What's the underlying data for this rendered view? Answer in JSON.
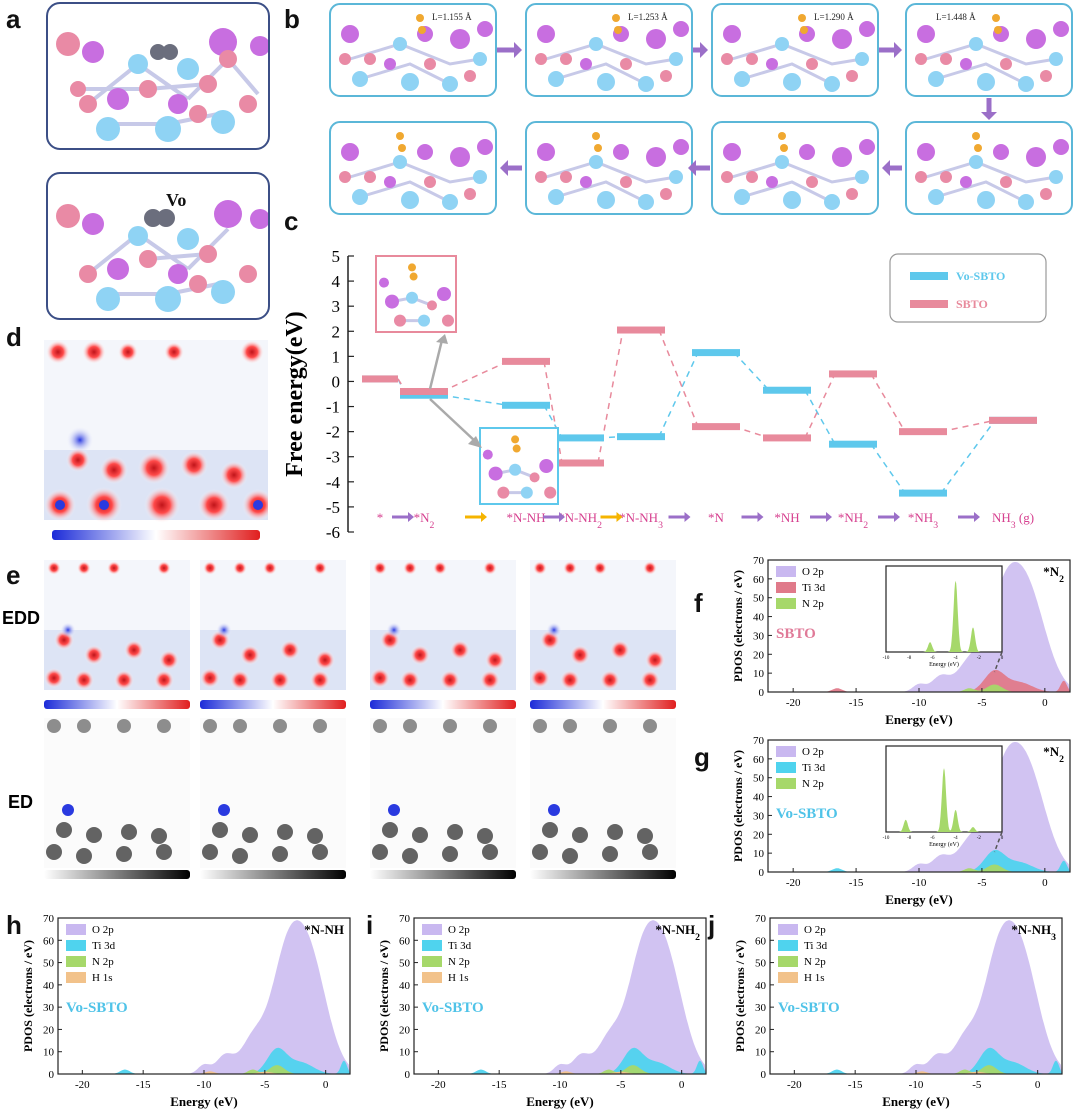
{
  "panels": {
    "a": "a",
    "b": "b",
    "c": "c",
    "d": "d",
    "e": "e",
    "f": "f",
    "g": "g",
    "h": "h",
    "i": "i",
    "j": "j"
  },
  "panel_a": {
    "vacancy_label": "Vo"
  },
  "panel_b": {
    "bond_lengths": [
      "L=1.155 Å",
      "L=1.253 Å",
      "L=1.290 Å",
      "L=1.448 Å"
    ]
  },
  "panel_e": {
    "row1_label": "EDD",
    "row2_label": "ED"
  },
  "colors": {
    "atom_pink": "#e98aa5",
    "atom_purple": "#c86ee0",
    "atom_blue": "#8fd3f4",
    "atom_orange": "#f0a830",
    "atom_gray": "#6b6e7d",
    "box_blue": "#5bb7d8",
    "arrow_purple": "#9b6fc8",
    "arrow_orange": "#f5b400",
    "vo_sbto": "#5ec8ec",
    "sbto": "#e88a9c"
  },
  "chart_data": [
    {
      "type": "step",
      "panel": "c",
      "ylabel": "Free energy(eV)",
      "ylim": [
        -6,
        5
      ],
      "yticks": [
        "5",
        "4",
        "3",
        "2",
        "1",
        "0",
        "-1",
        "-2",
        "-3",
        "-4",
        "-5",
        "-6"
      ],
      "categories": [
        "*",
        "*N₂",
        "*N-NH",
        "*N-NH₂",
        "*N-NH₃",
        "*N",
        "*NH",
        "*NH₂",
        "*NH₃",
        "NH₃ (g)"
      ],
      "arrow_colors": [
        "purple",
        "orange",
        "purple",
        "orange",
        "purple",
        "purple",
        "purple",
        "purple",
        "purple"
      ],
      "series": [
        {
          "name": "Vo-SBTO",
          "color": "#5ec8ec",
          "values": [
            0.1,
            -0.55,
            -0.95,
            -2.25,
            -2.2,
            1.15,
            -0.35,
            -2.5,
            -4.45,
            -1.55
          ]
        },
        {
          "name": "SBTO",
          "color": "#e88a9c",
          "values": [
            0.1,
            -0.4,
            0.8,
            -3.25,
            2.05,
            -1.8,
            -2.25,
            0.3,
            -2.0,
            -1.55
          ]
        }
      ]
    },
    {
      "type": "area",
      "panel": "f",
      "title": "*N₂",
      "label": "SBTO",
      "xlabel": "Energy (eV)",
      "ylabel": "PDOS (electrons / eV)",
      "xlim": [
        -22,
        2
      ],
      "ylim": [
        0,
        70
      ],
      "xticks": [
        "-20",
        "-15",
        "-10",
        "-5",
        "0"
      ],
      "yticks": [
        "0",
        "10",
        "20",
        "30",
        "40",
        "50",
        "60",
        "70"
      ],
      "series": [
        {
          "name": "O 2p",
          "color": "#c9b8f0"
        },
        {
          "name": "Ti 3d",
          "color": "#e07a8a"
        },
        {
          "name": "N 2p",
          "color": "#a6d86a"
        }
      ],
      "inset": {
        "xticks": [
          "-10",
          "-8",
          "-6",
          "-4",
          "-2",
          "0"
        ],
        "xlabel": "Energy (eV)",
        "peaks": [
          [
            -6.2,
            8
          ],
          [
            -4.0,
            58
          ],
          [
            -2.5,
            20
          ]
        ]
      }
    },
    {
      "type": "area",
      "panel": "g",
      "title": "*N₂",
      "label": "Vo-SBTO",
      "xlabel": "Energy (eV)",
      "ylabel": "PDOS (electrons / eV)",
      "xlim": [
        -22,
        2
      ],
      "ylim": [
        0,
        70
      ],
      "xticks": [
        "-20",
        "-15",
        "-10",
        "-5",
        "0"
      ],
      "yticks": [
        "0",
        "10",
        "20",
        "30",
        "40",
        "50",
        "60",
        "70"
      ],
      "series": [
        {
          "name": "O 2p",
          "color": "#c9b8f0"
        },
        {
          "name": "Ti 3d",
          "color": "#4fd3ee"
        },
        {
          "name": "N 2p",
          "color": "#a6d86a"
        }
      ],
      "inset": {
        "xticks": [
          "-10",
          "-8",
          "-6",
          "-4",
          "-2",
          "0"
        ],
        "xlabel": "Energy (eV)",
        "peaks": [
          [
            -8.3,
            10
          ],
          [
            -5.0,
            52
          ],
          [
            -4.0,
            18
          ],
          [
            -2.5,
            4
          ]
        ]
      }
    },
    {
      "type": "area",
      "panel": "h",
      "title": "*N-NH",
      "label": "Vo-SBTO",
      "xlabel": "Energy (eV)",
      "ylabel": "PDOS (electrons / eV)",
      "xlim": [
        -22,
        2
      ],
      "ylim": [
        0,
        70
      ],
      "xticks": [
        "-20",
        "-15",
        "-10",
        "-5",
        "0"
      ],
      "yticks": [
        "0",
        "10",
        "20",
        "30",
        "40",
        "50",
        "60",
        "70"
      ],
      "series": [
        {
          "name": "O 2p",
          "color": "#c9b8f0"
        },
        {
          "name": "Ti 3d",
          "color": "#4fd3ee"
        },
        {
          "name": "N 2p",
          "color": "#a6d86a"
        },
        {
          "name": "H 1s",
          "color": "#f2c28a"
        }
      ]
    },
    {
      "type": "area",
      "panel": "i",
      "title": "*N-NH₂",
      "label": "Vo-SBTO",
      "xlabel": "Energy (eV)",
      "ylabel": "PDOS (electrons / eV)",
      "xlim": [
        -22,
        2
      ],
      "ylim": [
        0,
        70
      ],
      "xticks": [
        "-20",
        "-15",
        "-10",
        "-5",
        "0"
      ],
      "yticks": [
        "0",
        "10",
        "20",
        "30",
        "40",
        "50",
        "60",
        "70"
      ],
      "series": [
        {
          "name": "O 2p",
          "color": "#c9b8f0"
        },
        {
          "name": "Ti 3d",
          "color": "#4fd3ee"
        },
        {
          "name": "N 2p",
          "color": "#a6d86a"
        },
        {
          "name": "H 1s",
          "color": "#f2c28a"
        }
      ]
    },
    {
      "type": "area",
      "panel": "j",
      "title": "*N-NH₃",
      "label": "Vo-SBTO",
      "xlabel": "Energy (eV)",
      "ylabel": "PDOS (electrons / eV)",
      "xlim": [
        -22,
        2
      ],
      "ylim": [
        0,
        70
      ],
      "xticks": [
        "-20",
        "-15",
        "-10",
        "-5",
        "0"
      ],
      "yticks": [
        "0",
        "10",
        "20",
        "30",
        "40",
        "50",
        "60",
        "70"
      ],
      "series": [
        {
          "name": "O 2p",
          "color": "#c9b8f0"
        },
        {
          "name": "Ti 3d",
          "color": "#4fd3ee"
        },
        {
          "name": "N 2p",
          "color": "#a6d86a"
        },
        {
          "name": "H 1s",
          "color": "#f2c28a"
        }
      ]
    }
  ]
}
